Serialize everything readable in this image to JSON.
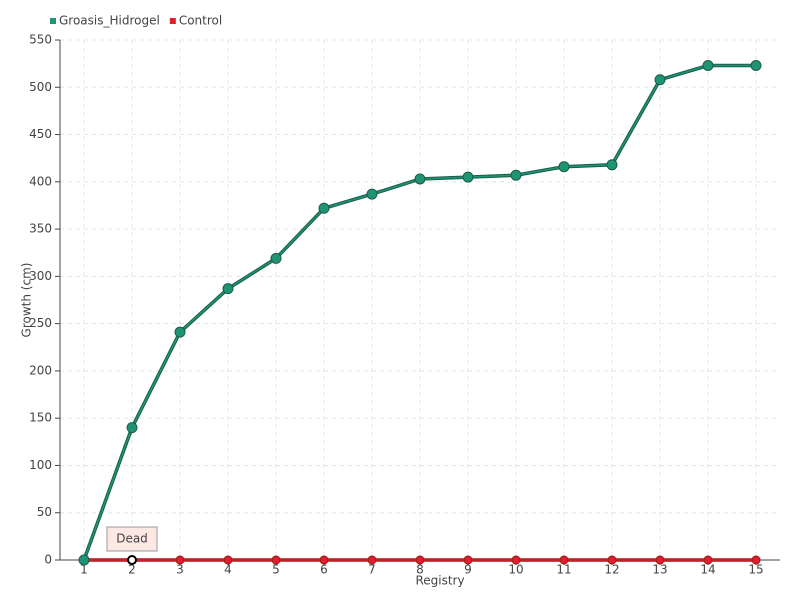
{
  "chart_data": {
    "type": "line",
    "categories": [
      "1",
      "2",
      "3",
      "4",
      "5",
      "6",
      "7",
      "8",
      "9",
      "10",
      "11",
      "12",
      "13",
      "14",
      "15"
    ],
    "series": [
      {
        "name": "Groasis_Hidrogel",
        "color": "#1f9474",
        "values": [
          0,
          140,
          241,
          287,
          319,
          372,
          387,
          403,
          405,
          407,
          416,
          418,
          508,
          523,
          523
        ]
      },
      {
        "name": "Control",
        "color": "#e0202a",
        "values": [
          0,
          0,
          0,
          0,
          0,
          0,
          0,
          0,
          0,
          0,
          0,
          0,
          0,
          0,
          0
        ]
      }
    ],
    "annotation": "Dead",
    "x_label": "Registry",
    "y_label": "Growth (cm)",
    "ylim": [
      0,
      550
    ],
    "yticks": [
      0,
      50,
      100,
      150,
      200,
      250,
      300,
      350,
      400,
      450,
      500,
      550
    ],
    "grid": true,
    "legend": "top-left"
  }
}
